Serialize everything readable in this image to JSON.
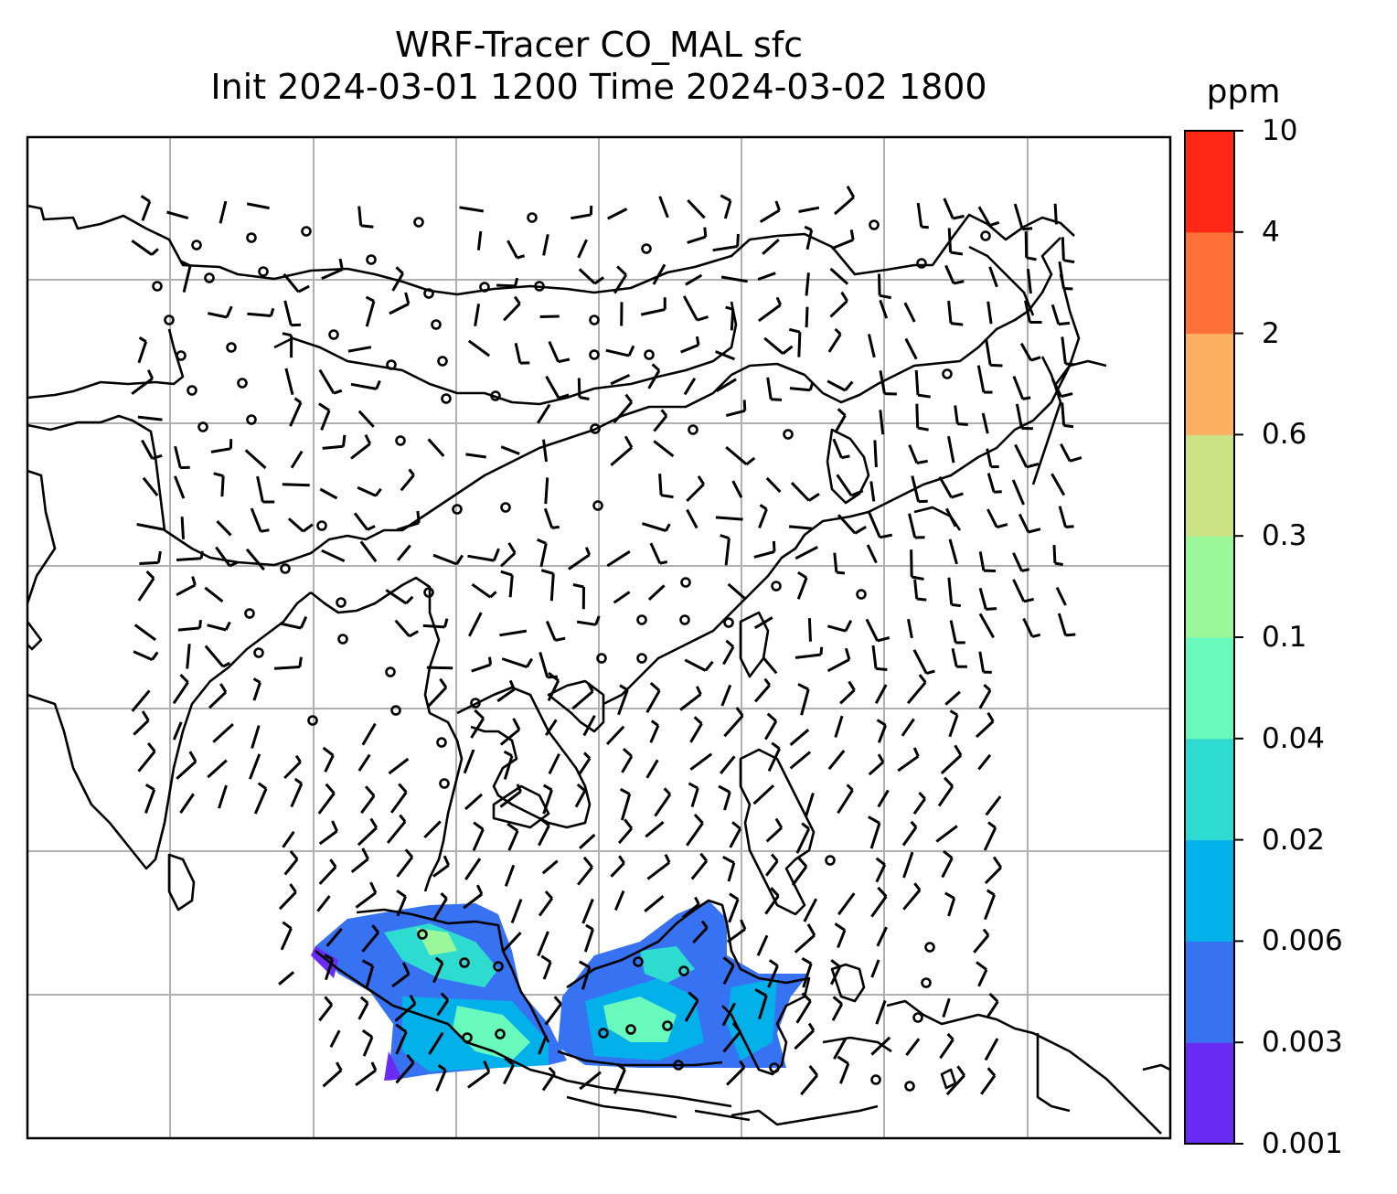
{
  "title": {
    "line1": "WRF-Tracer CO_MAL sfc",
    "line2": "Init 2024-03-01 1200 Time 2024-03-02 1800"
  },
  "colorbar": {
    "unit": "ppm",
    "levels": [
      "0.001",
      "0.003",
      "0.006",
      "0.02",
      "0.04",
      "0.1",
      "0.3",
      "0.6",
      "2",
      "4",
      "10"
    ],
    "colors": [
      "#6a2bf5",
      "#3672f2",
      "#03b1ea",
      "#2edbd1",
      "#68f9bd",
      "#9af89a",
      "#cde285",
      "#fdb062",
      "#ff7139",
      "#ff2817"
    ]
  },
  "map": {
    "gridlines": true,
    "coastline_color": "#000000",
    "grid_color": "#b0b0b0"
  }
}
